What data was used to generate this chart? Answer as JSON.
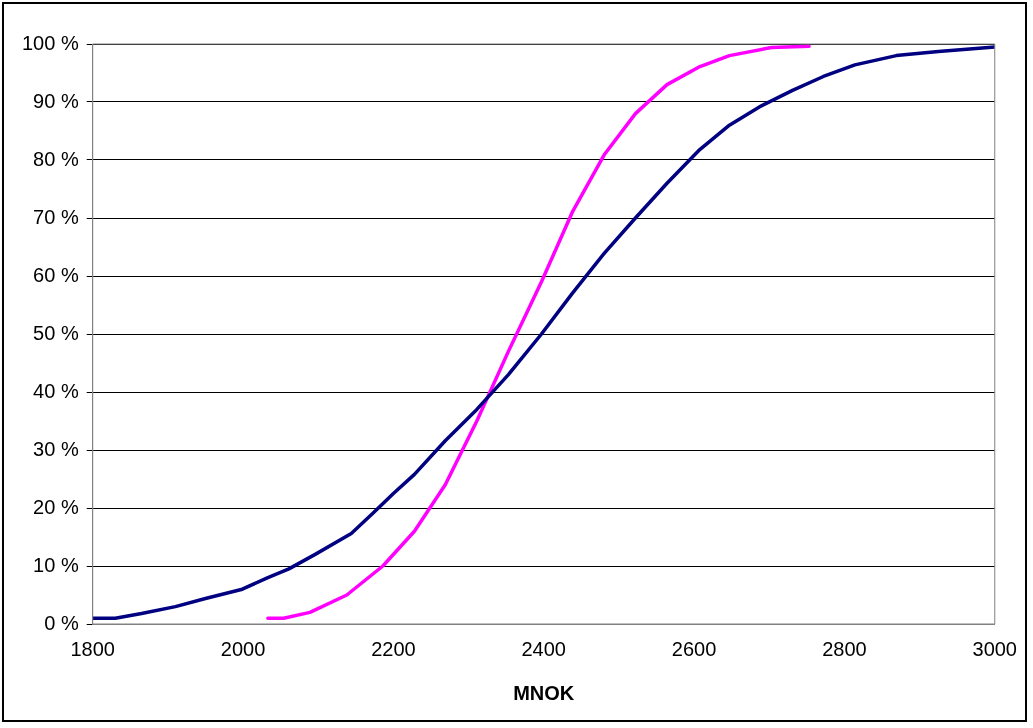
{
  "chart_data": {
    "type": "line",
    "xlabel": "MNOK",
    "xlim": [
      1800,
      3000
    ],
    "xticks": [
      1800,
      2000,
      2200,
      2400,
      2600,
      2800,
      3000
    ],
    "ylim": [
      0,
      100
    ],
    "yticks": [
      {
        "value": 0,
        "label": "0 %"
      },
      {
        "value": 10,
        "label": "10 %"
      },
      {
        "value": 20,
        "label": "20 %"
      },
      {
        "value": 30,
        "label": "30 %"
      },
      {
        "value": 40,
        "label": "40 %"
      },
      {
        "value": 50,
        "label": "50 %"
      },
      {
        "value": 60,
        "label": "60 %"
      },
      {
        "value": 70,
        "label": "70 %"
      },
      {
        "value": 80,
        "label": "80 %"
      },
      {
        "value": 90,
        "label": "90 %"
      },
      {
        "value": 100,
        "label": "100 %"
      }
    ],
    "grid": "y",
    "legend": false,
    "marker": "none",
    "line_style": "solid",
    "series": [
      {
        "color": "#000080",
        "x": [
          1800,
          1830,
          1865,
          1910,
          1950,
          1999,
          2033,
          2061,
          2096,
          2144,
          2172,
          2200,
          2228,
          2269,
          2311,
          2353,
          2397,
          2438,
          2481,
          2522,
          2564,
          2606,
          2647,
          2689,
          2731,
          2772,
          2814,
          2869,
          2925,
          3000
        ],
        "values": [
          1,
          1,
          1.8,
          3,
          4.4,
          6,
          8,
          9.5,
          12,
          15.6,
          19,
          22.5,
          25.8,
          31.6,
          37,
          43,
          50,
          57,
          64,
          70,
          76,
          81.6,
          86,
          89.3,
          92,
          94.4,
          96.4,
          98,
          98.7,
          99.5
        ]
      },
      {
        "color": "#ff00ff",
        "x": [
          2033,
          2054,
          2089,
          2138,
          2186,
          2228,
          2269,
          2311,
          2353,
          2397,
          2438,
          2481,
          2522,
          2564,
          2606,
          2647,
          2703,
          2753
        ],
        "values": [
          1,
          1,
          2,
          5,
          10,
          16,
          24,
          35,
          47,
          59,
          71,
          81,
          88,
          93,
          96,
          98,
          99.4,
          99.6
        ]
      }
    ]
  }
}
